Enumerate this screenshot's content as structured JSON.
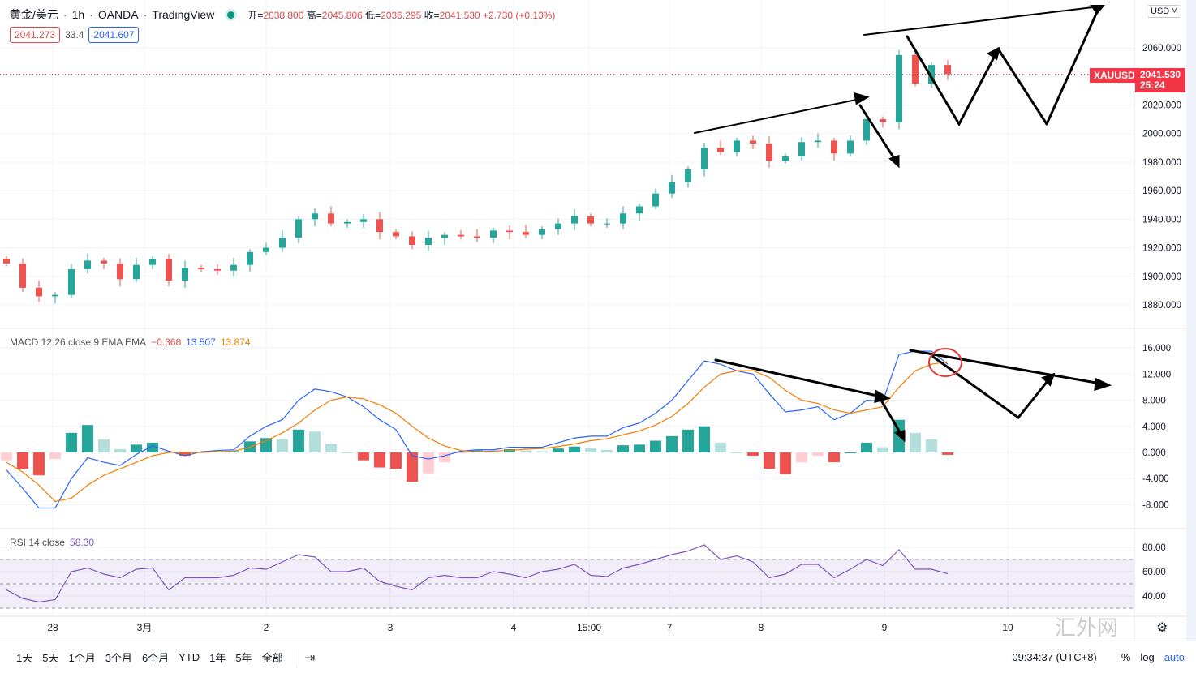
{
  "header": {
    "symbol": "黄金/美元",
    "interval": "1h",
    "broker": "OANDA",
    "source": "TradingView",
    "sep": "·",
    "open_label": "开=",
    "open": "2038.800",
    "high_label": "高=",
    "high": "2045.806",
    "low_label": "低=",
    "low": "2036.295",
    "close_label": "收=",
    "close": "2041.530",
    "change": "+2.730 (+0.13%)",
    "sell": "2041.273",
    "spread": "33.4",
    "buy": "2041.607"
  },
  "price_axis": {
    "currency": "USD ˅",
    "symbol_tag": "XAUUSD",
    "last_price": "2041.530",
    "countdown": "25:24"
  },
  "macd_header": {
    "title": "MACD 12 26 close 9 EMA EMA",
    "hist": "−0.368",
    "macd": "13.507",
    "signal": "13.874"
  },
  "rsi_header": {
    "title": "RSI 14 close",
    "value": "58.30"
  },
  "bottom": {
    "ranges": [
      "1天",
      "5天",
      "1个月",
      "3个月",
      "6个月",
      "YTD",
      "1年",
      "5年",
      "全部"
    ],
    "time": "09:34:37 (UTC+8)",
    "percent": "%",
    "log": "log",
    "auto": "auto"
  },
  "watermark": "汇外网",
  "colors": {
    "up": "#26a69a",
    "down": "#ef5350",
    "macd": "#2962ff",
    "signal": "#f57c00",
    "rsi": "#7e57c2"
  },
  "chart_data": [
    {
      "type": "candlestick",
      "title": "黄金/美元 · 1h · OANDA",
      "ylim": [
        1870,
        2085
      ],
      "yticks": [
        2060,
        2040,
        2020,
        2000,
        1980,
        1960,
        1940,
        1920,
        1900,
        1880
      ],
      "ytick_labels": [
        "2060.000",
        "2040.000",
        "2020.000",
        "2000.000",
        "1980.000",
        "1960.000",
        "1940.000",
        "1920.000",
        "1900.000",
        "1880.000"
      ],
      "xtick_labels": [
        "28",
        "3月",
        "2",
        "3",
        "4",
        "15:00",
        "7",
        "8",
        "9",
        "10"
      ],
      "xtick_index": [
        4.1,
        9.75,
        17.25,
        24.9,
        32.5,
        37.15,
        42.1,
        47.75,
        55.35,
        62.95
      ],
      "close": [
        1909,
        1892,
        1886,
        1887,
        1905,
        1911,
        1909,
        1898,
        1908,
        1912,
        1897,
        1906,
        1905,
        1904,
        1908,
        1917,
        1920,
        1927,
        1940,
        1944,
        1937,
        1938,
        1940,
        1931,
        1928,
        1922,
        1927,
        1929,
        1928,
        1927,
        1932,
        1931,
        1929,
        1933,
        1937,
        1942,
        1937,
        1937,
        1944,
        1949,
        1958,
        1966,
        1975,
        1990,
        1987,
        1995,
        1993,
        1981,
        1984,
        1994,
        1995,
        1986,
        1995,
        2010,
        2008,
        2055,
        2035,
        2048,
        2041.53
      ]
    },
    {
      "type": "line",
      "title": "MACD 12 26 close 9 EMA EMA",
      "ylim": [
        -11,
        18
      ],
      "yticks": [
        16,
        12,
        8,
        4,
        0,
        -4,
        -8
      ],
      "ytick_labels": [
        "16.000",
        "12.000",
        "8.000",
        "4.000",
        "0.000",
        "-4.000",
        "-8.000"
      ],
      "series": [
        {
          "name": "MACD",
          "values": [
            -2.7,
            -5.5,
            -8.5,
            -8.5,
            -4,
            -0.8,
            -1.5,
            -2,
            -0.3,
            1,
            0.2,
            -0.5,
            0.1,
            0.3,
            0.4,
            2.5,
            4,
            5,
            8,
            9.7,
            9.3,
            8.5,
            7,
            5,
            3.5,
            -0.5,
            -1,
            -0.5,
            0.2,
            0.4,
            0.4,
            0.8,
            0.8,
            0.8,
            1.5,
            2.2,
            2.5,
            2.5,
            3.8,
            4.5,
            6,
            8,
            11,
            14,
            13.5,
            12.5,
            12,
            9,
            6.2,
            6.5,
            7,
            5,
            6,
            8,
            7.8,
            15,
            15.5,
            15.5,
            13.507
          ]
        },
        {
          "name": "Signal",
          "values": [
            -1.5,
            -3,
            -5,
            -7.5,
            -7,
            -5,
            -3.5,
            -2.5,
            -1.5,
            -0.5,
            0,
            0,
            0,
            0.1,
            0.2,
            0.8,
            1.8,
            3,
            4.5,
            6.5,
            8,
            8.5,
            8.2,
            7.3,
            6,
            4,
            2.2,
            1,
            0.3,
            0.1,
            0.2,
            0.3,
            0.5,
            0.6,
            0.9,
            1.3,
            1.8,
            2.1,
            2.7,
            3.3,
            4.2,
            5.5,
            7.5,
            10,
            12,
            12.5,
            12.5,
            11.5,
            9.5,
            8,
            7.5,
            6.5,
            6,
            6.5,
            7,
            10,
            12.5,
            13.5,
            13.874
          ]
        }
      ]
    },
    {
      "type": "line",
      "title": "RSI 14 close",
      "ylim": [
        22,
        92
      ],
      "yticks": [
        80,
        60,
        40
      ],
      "ytick_labels": [
        "80.00",
        "60.00",
        "40.00"
      ],
      "bands": [
        70,
        50,
        30
      ],
      "series": [
        {
          "name": "RSI",
          "values": [
            45,
            38,
            35,
            37,
            60,
            63,
            58,
            55,
            62,
            63,
            45,
            55,
            55,
            55,
            57,
            63,
            62,
            68,
            74,
            72,
            60,
            60,
            63,
            52,
            48,
            45,
            55,
            57,
            55,
            55,
            60,
            58,
            55,
            60,
            62,
            66,
            57,
            56,
            63,
            66,
            70,
            74,
            77,
            82,
            70,
            73,
            68,
            55,
            58,
            66,
            66,
            55,
            62,
            70,
            65,
            78,
            62,
            62,
            58.3
          ]
        }
      ]
    }
  ]
}
